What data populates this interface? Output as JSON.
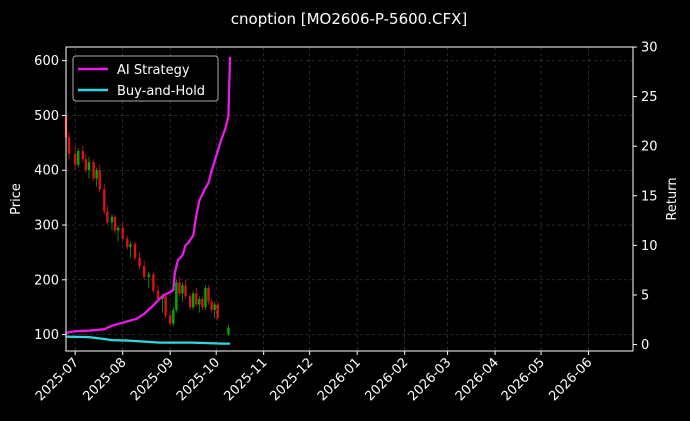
{
  "chart_data": {
    "type": "line",
    "title": "cnoption [MO2606-P-5600.CFX]",
    "ylabel_left": "Price",
    "ylabel_right": "Return",
    "theme": "dark",
    "grid": true,
    "legend": {
      "placement": "top-left",
      "entries": [
        {
          "label": "AI Strategy",
          "color": "#e81ce8"
        },
        {
          "label": "Buy-and-Hold",
          "color": "#2fd8e0"
        }
      ]
    },
    "colors": {
      "up": "#00aa00",
      "down": "#dd1111",
      "background": "#000000",
      "grid": "#444444",
      "ai": "#e81ce8",
      "bh": "#2fd8e0"
    },
    "y_left": {
      "min": 70,
      "max": 625,
      "ticks": [
        100,
        200,
        300,
        400,
        500,
        600
      ]
    },
    "y_right": {
      "min": -0.65,
      "max": 30,
      "ticks": [
        0,
        5,
        10,
        15,
        20,
        25,
        30
      ]
    },
    "x_range": [
      "2025-06-25",
      "2026-06-30"
    ],
    "x_ticks": [
      "2025-07",
      "2025-08",
      "2025-09",
      "2025-10",
      "2025-11",
      "2025-12",
      "2026-01",
      "2026-02",
      "2026-03",
      "2026-04",
      "2026-05",
      "2026-06"
    ],
    "series": [
      {
        "name": "AI Strategy",
        "axis": "right",
        "color": "#e81ce8",
        "points": [
          [
            "2025-06-25",
            1.2
          ],
          [
            "2025-07-01",
            1.35
          ],
          [
            "2025-07-10",
            1.4
          ],
          [
            "2025-07-20",
            1.55
          ],
          [
            "2025-07-25",
            1.9
          ],
          [
            "2025-08-01",
            2.2
          ],
          [
            "2025-08-10",
            2.6
          ],
          [
            "2025-08-15",
            3.1
          ],
          [
            "2025-08-20",
            3.8
          ],
          [
            "2025-08-25",
            4.6
          ],
          [
            "2025-08-28",
            5.0
          ],
          [
            "2025-09-01",
            5.3
          ],
          [
            "2025-09-03",
            5.5
          ],
          [
            "2025-09-04",
            7.2
          ],
          [
            "2025-09-06",
            8.5
          ],
          [
            "2025-09-09",
            9.0
          ],
          [
            "2025-09-11",
            10.0
          ],
          [
            "2025-09-13",
            10.3
          ],
          [
            "2025-09-16",
            11.0
          ],
          [
            "2025-09-18",
            13.0
          ],
          [
            "2025-09-20",
            14.5
          ],
          [
            "2025-09-24",
            15.8
          ],
          [
            "2025-09-26",
            16.3
          ],
          [
            "2025-09-28",
            17.5
          ],
          [
            "2025-10-01",
            19.0
          ],
          [
            "2025-10-04",
            20.5
          ],
          [
            "2025-10-07",
            21.8
          ],
          [
            "2025-10-09",
            23.0
          ],
          [
            "2025-10-10",
            29.0
          ]
        ]
      },
      {
        "name": "Buy-and-Hold",
        "axis": "right",
        "color": "#2fd8e0",
        "points": [
          [
            "2025-06-25",
            0.8
          ],
          [
            "2025-07-10",
            0.75
          ],
          [
            "2025-07-18",
            0.6
          ],
          [
            "2025-07-25",
            0.45
          ],
          [
            "2025-08-05",
            0.4
          ],
          [
            "2025-08-15",
            0.3
          ],
          [
            "2025-08-25",
            0.2
          ],
          [
            "2025-09-05",
            0.2
          ],
          [
            "2025-09-15",
            0.2
          ],
          [
            "2025-09-25",
            0.15
          ],
          [
            "2025-10-05",
            0.1
          ],
          [
            "2025-10-10",
            0.1
          ]
        ]
      },
      {
        "name": "Price",
        "type": "candlestick",
        "axis": "left",
        "ohlc": [
          [
            "2025-06-25",
            500,
            540,
            440,
            460
          ],
          [
            "2025-06-27",
            460,
            470,
            420,
            430
          ],
          [
            "2025-07-01",
            430,
            445,
            400,
            410
          ],
          [
            "2025-07-03",
            410,
            440,
            405,
            435
          ],
          [
            "2025-07-06",
            435,
            445,
            415,
            420
          ],
          [
            "2025-07-08",
            420,
            430,
            395,
            400
          ],
          [
            "2025-07-10",
            400,
            425,
            385,
            415
          ],
          [
            "2025-07-13",
            415,
            420,
            380,
            385
          ],
          [
            "2025-07-15",
            385,
            405,
            370,
            400
          ],
          [
            "2025-07-17",
            400,
            410,
            360,
            365
          ],
          [
            "2025-07-20",
            365,
            375,
            320,
            325
          ],
          [
            "2025-07-22",
            325,
            335,
            300,
            305
          ],
          [
            "2025-07-25",
            305,
            320,
            290,
            315
          ],
          [
            "2025-07-27",
            315,
            320,
            285,
            290
          ],
          [
            "2025-07-29",
            290,
            300,
            270,
            295
          ],
          [
            "2025-08-01",
            295,
            305,
            270,
            275
          ],
          [
            "2025-08-04",
            275,
            280,
            255,
            260
          ],
          [
            "2025-08-06",
            260,
            270,
            240,
            265
          ],
          [
            "2025-08-09",
            265,
            270,
            235,
            240
          ],
          [
            "2025-08-12",
            240,
            250,
            220,
            225
          ],
          [
            "2025-08-15",
            225,
            235,
            200,
            205
          ],
          [
            "2025-08-18",
            205,
            215,
            185,
            210
          ],
          [
            "2025-08-21",
            210,
            215,
            175,
            180
          ],
          [
            "2025-08-24",
            180,
            190,
            160,
            165
          ],
          [
            "2025-08-27",
            165,
            175,
            140,
            170
          ],
          [
            "2025-08-29",
            170,
            175,
            130,
            135
          ],
          [
            "2025-09-01",
            135,
            145,
            115,
            120
          ],
          [
            "2025-09-03",
            120,
            150,
            115,
            145
          ],
          [
            "2025-09-05",
            145,
            200,
            140,
            195
          ],
          [
            "2025-09-07",
            195,
            205,
            170,
            175
          ],
          [
            "2025-09-09",
            175,
            195,
            160,
            190
          ],
          [
            "2025-09-11",
            190,
            200,
            165,
            170
          ],
          [
            "2025-09-14",
            170,
            175,
            145,
            150
          ],
          [
            "2025-09-16",
            150,
            180,
            145,
            175
          ],
          [
            "2025-09-18",
            175,
            185,
            150,
            155
          ],
          [
            "2025-09-20",
            155,
            170,
            140,
            165
          ],
          [
            "2025-09-22",
            165,
            170,
            145,
            150
          ],
          [
            "2025-09-24",
            150,
            190,
            145,
            185
          ],
          [
            "2025-09-26",
            185,
            190,
            155,
            160
          ],
          [
            "2025-09-28",
            160,
            165,
            140,
            145
          ],
          [
            "2025-09-30",
            145,
            160,
            130,
            155
          ],
          [
            "2025-10-02",
            155,
            160,
            125,
            130
          ],
          [
            "2025-10-09",
            100,
            118,
            98,
            112
          ]
        ]
      }
    ]
  }
}
